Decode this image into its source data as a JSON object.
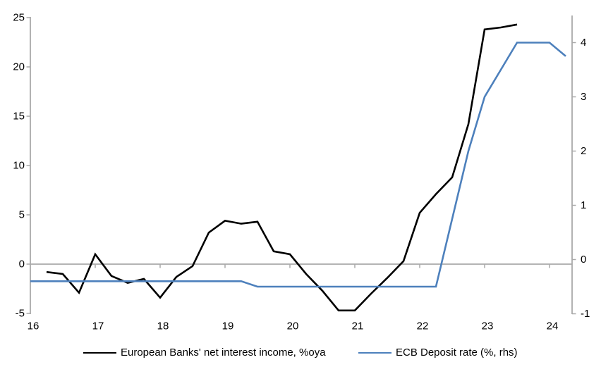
{
  "chart_data": {
    "type": "line",
    "title": "",
    "legend_position": "bottom",
    "grid": "zero-line-only",
    "x_axis": {
      "tick_labels": [
        "16",
        "17",
        "18",
        "19",
        "20",
        "21",
        "22",
        "23",
        "24"
      ],
      "tick_years": [
        16,
        17,
        18,
        19,
        20,
        21,
        22,
        23,
        24
      ],
      "range": [
        16,
        24.35
      ]
    },
    "left_axis": {
      "ticks": [
        -5,
        0,
        5,
        10,
        15,
        20,
        25
      ],
      "tick_labels": [
        "-5",
        "0",
        "5",
        "10",
        "15",
        "20",
        "25"
      ],
      "range": [
        -5,
        25
      ]
    },
    "right_axis": {
      "ticks": [
        -1,
        0,
        1,
        2,
        3,
        4
      ],
      "tick_labels": [
        "-1",
        "0",
        "1",
        "2",
        "3",
        "4"
      ],
      "range": [
        -1,
        4.5
      ]
    },
    "series": [
      {
        "name": "European Banks' net interest income, %oya",
        "axis": "left",
        "color": "#000000",
        "x": [
          16.25,
          16.5,
          16.75,
          17,
          17.25,
          17.5,
          17.75,
          18,
          18.25,
          18.5,
          18.75,
          19,
          19.25,
          19.5,
          19.75,
          20,
          20.25,
          20.5,
          20.75,
          21,
          21.25,
          21.5,
          21.75,
          22,
          22.25,
          22.5,
          22.75,
          23,
          23.25,
          23.5
        ],
        "values": [
          -0.8,
          -1,
          -2.9,
          1,
          -1.2,
          -1.9,
          -1.5,
          -3.4,
          -1.3,
          -0.2,
          3.2,
          4.4,
          4.1,
          4.3,
          1.3,
          1,
          -1,
          -2.7,
          -4.7,
          -4.7,
          -3,
          -1.4,
          0.3,
          5.2,
          7.1,
          8.8,
          14.2,
          23.8,
          24,
          24.3
        ]
      },
      {
        "name": "ECB Deposit rate (%, rhs)",
        "axis": "right",
        "color": "#4D80BC",
        "x": [
          16,
          16.25,
          16.5,
          16.75,
          17,
          17.25,
          17.5,
          17.75,
          18,
          18.25,
          18.5,
          18.75,
          19,
          19.25,
          19.5,
          19.75,
          20,
          20.25,
          20.5,
          20.75,
          21,
          21.25,
          21.5,
          21.75,
          22,
          22.25,
          22.5,
          22.75,
          23,
          23.25,
          23.5,
          23.75,
          24,
          24.25
        ],
        "values": [
          -0.4,
          -0.4,
          -0.4,
          -0.4,
          -0.4,
          -0.4,
          -0.4,
          -0.4,
          -0.4,
          -0.4,
          -0.4,
          -0.4,
          -0.4,
          -0.4,
          -0.5,
          -0.5,
          -0.5,
          -0.5,
          -0.5,
          -0.5,
          -0.5,
          -0.5,
          -0.5,
          -0.5,
          -0.5,
          -0.5,
          0.75,
          2,
          3,
          3.5,
          4,
          4,
          4,
          3.75
        ]
      }
    ]
  },
  "colors": {
    "axis_gray": "#A9A9A9",
    "text": "#000000",
    "background": "#FFFFFF",
    "black_line": "#000000",
    "blue_line": "#4D80BC"
  }
}
